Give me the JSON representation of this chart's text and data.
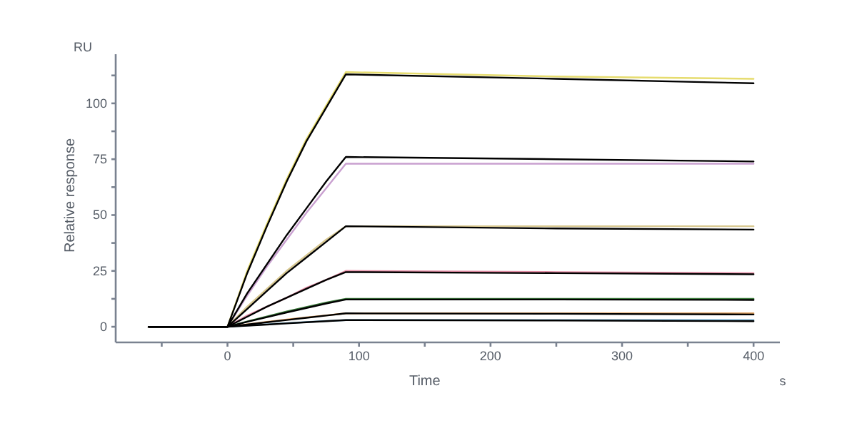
{
  "chart_data": {
    "type": "line",
    "xlabel": "Time",
    "ylabel": "Relative response",
    "annotations": [
      "RU",
      "s"
    ],
    "x": [
      -60,
      0,
      15,
      30,
      45,
      60,
      75,
      90,
      250,
      400
    ],
    "xlim": [
      -85,
      420
    ],
    "xticks": [
      {
        "value": -50,
        "label": null
      },
      0,
      {
        "value": 50,
        "label": null
      },
      100,
      {
        "value": 150,
        "label": null
      },
      200,
      {
        "value": 250,
        "label": null
      },
      300,
      {
        "value": 350,
        "label": null
      },
      400
    ],
    "ylim": [
      -7,
      122
    ],
    "yticks": [
      0,
      {
        "value": 12.5,
        "label": null
      },
      25,
      {
        "value": 37.5,
        "label": null
      },
      50,
      {
        "value": 62.5,
        "label": null
      },
      75,
      {
        "value": 87.5,
        "label": null
      },
      100,
      {
        "value": 112.5,
        "label": null
      }
    ],
    "grid": false,
    "marker": "none",
    "line_style": "solid",
    "series": [
      {
        "color": "#e6dc6e",
        "values": [
          0,
          0,
          25,
          46,
          66,
          84,
          99,
          114,
          112,
          111
        ]
      },
      {
        "color": "#c9a0d0",
        "values": [
          0,
          0,
          14,
          27,
          39,
          51,
          62,
          73,
          73,
          73
        ]
      },
      {
        "color": "#d8c890",
        "values": [
          0,
          0,
          9,
          17,
          25,
          32,
          39,
          45,
          45,
          45
        ]
      },
      {
        "color": "#e890a8",
        "values": [
          0,
          0,
          5,
          9,
          13,
          17.5,
          21,
          25,
          24.5,
          24
        ]
      },
      {
        "color": "#3a7a3a",
        "values": [
          0,
          0,
          2.4,
          4.6,
          6.8,
          8.8,
          10.8,
          12.5,
          12.5,
          12.5
        ]
      },
      {
        "color": "#e0a060",
        "values": [
          0,
          0,
          1.1,
          2.2,
          3.2,
          4.2,
          5.1,
          6,
          6,
          6
        ]
      },
      {
        "color": "#70a8c8",
        "values": [
          0,
          0,
          0.6,
          1.1,
          1.6,
          2.1,
          2.6,
          3,
          3,
          3
        ]
      },
      {
        "color": "#000000",
        "values": [
          0,
          0,
          24,
          45,
          65,
          83,
          98,
          113,
          111,
          109
        ]
      },
      {
        "color": "#000000",
        "values": [
          0,
          0,
          15,
          28,
          41,
          53,
          65,
          76,
          75,
          74
        ]
      },
      {
        "color": "#000000",
        "values": [
          0,
          0,
          8,
          16,
          24,
          31,
          38,
          45,
          44,
          43.5
        ]
      },
      {
        "color": "#000000",
        "values": [
          0,
          0,
          4.5,
          9,
          13,
          17,
          21,
          24.5,
          24,
          23.5
        ]
      },
      {
        "color": "#000000",
        "values": [
          0,
          0,
          2.2,
          4.3,
          6.4,
          8.4,
          10.4,
          12.2,
          12.2,
          12
        ]
      },
      {
        "color": "#000000",
        "values": [
          0,
          0,
          1,
          2,
          3,
          4,
          5,
          6,
          5.8,
          5.5
        ]
      },
      {
        "color": "#000000",
        "values": [
          0,
          0,
          0.5,
          1,
          1.5,
          2,
          2.5,
          3,
          2.8,
          2.5
        ]
      }
    ]
  }
}
